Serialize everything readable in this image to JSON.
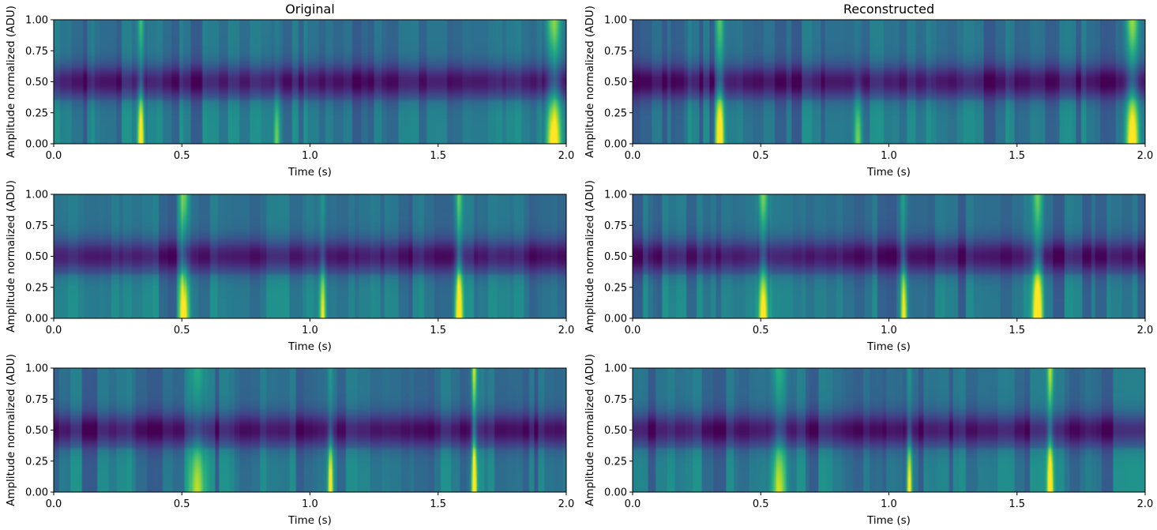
{
  "figure": {
    "colormap": "viridis",
    "colors": {
      "viridis_low": "#440154",
      "viridis_mid": "#21918c",
      "viridis_high": "#fde725"
    }
  },
  "chart_data": [
    {
      "type": "heatmap",
      "panel": "row1-left",
      "title": "Original",
      "xlabel": "Time (s)",
      "ylabel": "Amplitude normalized (ADU)",
      "xlim": [
        0.0,
        2.0
      ],
      "ylim": [
        0.0,
        1.0
      ],
      "xticks": [
        "0.0",
        "0.5",
        "1.0",
        "1.5",
        "2.0"
      ],
      "yticks": [
        "0.00",
        "0.25",
        "0.50",
        "0.75",
        "1.00"
      ],
      "events": [
        {
          "t": 0.34,
          "strength": 1.0,
          "width": 0.012,
          "spread": 0.55
        },
        {
          "t": 0.87,
          "strength": 0.55,
          "width": 0.012,
          "spread": 0.2
        },
        {
          "t": 1.95,
          "strength": 0.95,
          "width": 0.03,
          "spread": 0.85
        }
      ]
    },
    {
      "type": "heatmap",
      "panel": "row1-right",
      "title": "Reconstructed",
      "xlabel": "Time (s)",
      "ylabel": "Amplitude normalized (ADU)",
      "xlim": [
        0.0,
        2.0
      ],
      "ylim": [
        0.0,
        1.0
      ],
      "xticks": [
        "0.0",
        "0.5",
        "1.0",
        "1.5",
        "2.0"
      ],
      "yticks": [
        "0.00",
        "0.25",
        "0.50",
        "0.75",
        "1.00"
      ],
      "events": [
        {
          "t": 0.34,
          "strength": 0.95,
          "width": 0.016,
          "spread": 0.55
        },
        {
          "t": 0.88,
          "strength": 0.6,
          "width": 0.015,
          "spread": 0.2
        },
        {
          "t": 1.95,
          "strength": 0.95,
          "width": 0.025,
          "spread": 0.85
        }
      ]
    },
    {
      "type": "heatmap",
      "panel": "row2-left",
      "title": "",
      "xlabel": "Time (s)",
      "ylabel": "Amplitude normalized (ADU)",
      "xlim": [
        0.0,
        2.0
      ],
      "ylim": [
        0.0,
        1.0
      ],
      "xticks": [
        "0.0",
        "0.5",
        "1.0",
        "1.5",
        "2.0"
      ],
      "yticks": [
        "0.00",
        "0.25",
        "0.50",
        "0.75",
        "1.00"
      ],
      "events": [
        {
          "t": 0.51,
          "strength": 0.95,
          "width": 0.018,
          "spread": 0.8
        },
        {
          "t": 1.05,
          "strength": 0.75,
          "width": 0.012,
          "spread": 0.3
        },
        {
          "t": 1.58,
          "strength": 1.0,
          "width": 0.015,
          "spread": 0.55
        }
      ]
    },
    {
      "type": "heatmap",
      "panel": "row2-right",
      "title": "",
      "xlabel": "Time (s)",
      "ylabel": "Amplitude normalized (ADU)",
      "xlim": [
        0.0,
        2.0
      ],
      "ylim": [
        0.0,
        1.0
      ],
      "xticks": [
        "0.0",
        "0.5",
        "1.0",
        "1.5",
        "2.0"
      ],
      "yticks": [
        "0.00",
        "0.25",
        "0.50",
        "0.75",
        "1.00"
      ],
      "events": [
        {
          "t": 0.51,
          "strength": 1.0,
          "width": 0.02,
          "spread": 0.8
        },
        {
          "t": 1.06,
          "strength": 0.8,
          "width": 0.012,
          "spread": 0.3
        },
        {
          "t": 1.58,
          "strength": 1.0,
          "width": 0.018,
          "spread": 0.55
        }
      ]
    },
    {
      "type": "heatmap",
      "panel": "row3-left",
      "title": "",
      "xlabel": "Time (s)",
      "ylabel": "Amplitude normalized (ADU)",
      "xlim": [
        0.0,
        2.0
      ],
      "ylim": [
        0.0,
        1.0
      ],
      "xticks": [
        "0.0",
        "0.5",
        "1.0",
        "1.5",
        "2.0"
      ],
      "yticks": [
        "0.00",
        "0.25",
        "0.50",
        "0.75",
        "1.00"
      ],
      "events": [
        {
          "t": 0.56,
          "strength": 0.6,
          "width": 0.03,
          "spread": 0.6
        },
        {
          "t": 1.08,
          "strength": 0.95,
          "width": 0.01,
          "spread": 0.3
        },
        {
          "t": 1.64,
          "strength": 1.0,
          "width": 0.01,
          "spread": 0.85
        }
      ]
    },
    {
      "type": "heatmap",
      "panel": "row3-right",
      "title": "",
      "xlabel": "Time (s)",
      "ylabel": "Amplitude normalized (ADU)",
      "xlim": [
        0.0,
        2.0
      ],
      "ylim": [
        0.0,
        1.0
      ],
      "xticks": [
        "0.0",
        "0.5",
        "1.0",
        "1.5",
        "2.0"
      ],
      "yticks": [
        "0.00",
        "0.25",
        "0.50",
        "0.75",
        "1.00"
      ],
      "events": [
        {
          "t": 0.57,
          "strength": 0.6,
          "width": 0.03,
          "spread": 0.6
        },
        {
          "t": 1.08,
          "strength": 0.9,
          "width": 0.01,
          "spread": 0.3
        },
        {
          "t": 1.63,
          "strength": 0.95,
          "width": 0.012,
          "spread": 0.85
        }
      ]
    }
  ]
}
